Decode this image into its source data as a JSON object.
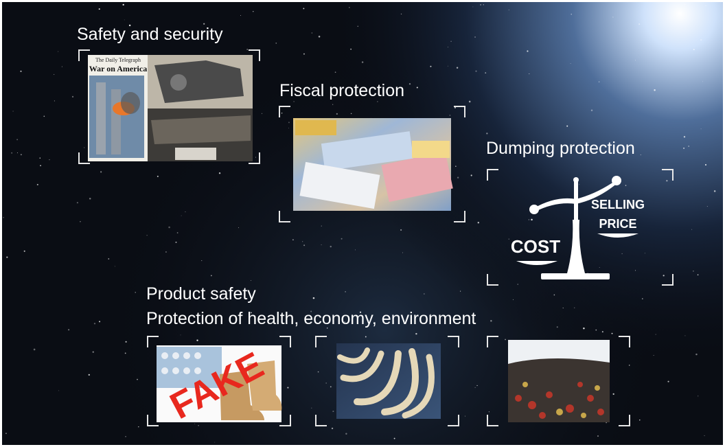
{
  "sections": [
    {
      "title": "Safety and security"
    },
    {
      "title": "Fiscal protection"
    },
    {
      "title": "Dumping protection"
    }
  ],
  "product_safety": {
    "title": "Product safety",
    "subtitle": "Protection of health, economy, environment"
  },
  "images": {
    "newspaper_masthead": "The Daily Telegraph",
    "newspaper_headline": "War on America",
    "cost_label": "COST",
    "price_label": [
      "SELLING",
      "PRICE"
    ],
    "fake_label": "FAKE"
  }
}
